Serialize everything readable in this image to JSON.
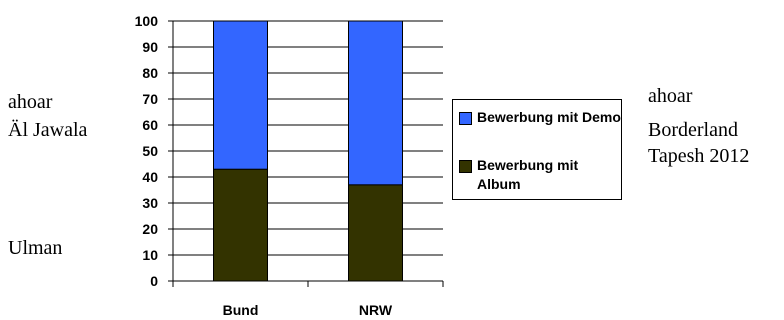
{
  "left_annotations": [
    "ahoar",
    "Äl Jawala",
    "Ulman"
  ],
  "right_annotations": [
    "ahoar",
    "Borderland",
    "Tapesh 2012"
  ],
  "chart_data": {
    "type": "bar",
    "stacked": true,
    "categories": [
      "Bund",
      "NRW"
    ],
    "series": [
      {
        "name": "Bewerbung mit Album",
        "color": "#333300",
        "values": [
          43,
          37
        ]
      },
      {
        "name": "Bewerbung mit Demo",
        "color": "#3366FF",
        "values": [
          57,
          63
        ]
      }
    ],
    "ylim": [
      0,
      100
    ],
    "yticks": [
      0,
      10,
      20,
      30,
      40,
      50,
      60,
      70,
      80,
      90,
      100
    ],
    "grid": true,
    "legend_position": "right",
    "legend_order": [
      "Bewerbung mit Demo",
      "Bewerbung mit Album"
    ]
  }
}
